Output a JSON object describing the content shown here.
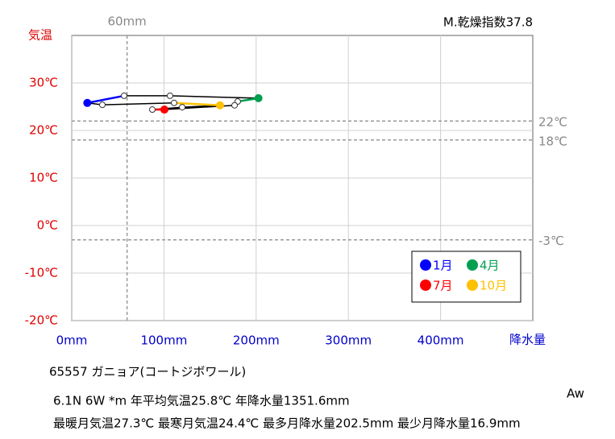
{
  "chart_data": {
    "type": "line",
    "index_label": "M.乾燥指数37.8",
    "y_title": "気温",
    "x_title": "降水量",
    "station": "65557  ガニョア(コートジボワール)",
    "info_line1": "6.1N  6W *m  年平均気温25.8℃ 年降水量1351.6mm",
    "info_line2": "最暖月気温27.3℃ 最寒月気温24.4℃ 最多月降水量202.5mm 最少月降水量16.9mm",
    "climate_class": "Aw",
    "x": [
      16.9,
      56.8,
      106.6,
      202.5,
      180,
      176.6,
      100.5,
      87.4,
      119.8,
      160.8,
      111,
      33.2
    ],
    "values": [
      25.8,
      27.3,
      27.3,
      26.8,
      26.1,
      25.3,
      24.4,
      24.4,
      24.9,
      25.3,
      25.8,
      25.4
    ],
    "line_color": "#000000",
    "series": [
      {
        "name": "1月",
        "color": "#0000ff"
      },
      {
        "name": "4月",
        "color": "#00a050"
      },
      {
        "name": "7月",
        "color": "#ff0000"
      },
      {
        "name": "10月",
        "color": "#ffc000"
      }
    ],
    "xlim": [
      0,
      500
    ],
    "ylim": [
      -20,
      40
    ],
    "xticks": [
      {
        "value": 0,
        "label": "0mm"
      },
      {
        "value": 100,
        "label": "100mm"
      },
      {
        "value": 200,
        "label": "200mm"
      },
      {
        "value": 300,
        "label": "300mm"
      },
      {
        "value": 400,
        "label": "400mm"
      }
    ],
    "yticks": [
      {
        "value": -20,
        "label": "-20℃"
      },
      {
        "value": -10,
        "label": "-10℃"
      },
      {
        "value": 0,
        "label": "0℃"
      },
      {
        "value": 10,
        "label": "10℃"
      },
      {
        "value": 20,
        "label": "20℃"
      },
      {
        "value": 30,
        "label": "30℃"
      }
    ],
    "ref_lines": [
      {
        "axis": "x",
        "value": 60,
        "label": "60mm"
      },
      {
        "axis": "y",
        "value": 22,
        "label": "22℃"
      },
      {
        "axis": "y",
        "value": 18,
        "label": "18℃"
      },
      {
        "axis": "y",
        "value": -3,
        "label": "-3℃"
      }
    ],
    "grid": true
  }
}
